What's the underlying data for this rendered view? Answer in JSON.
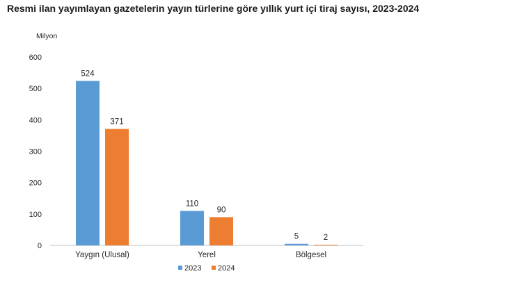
{
  "chart_data": {
    "type": "bar",
    "title": "Resmi ilan yayımlayan gazetelerin yayın türlerine göre yıllık yurt içi tiraj sayısı, 2023-2024",
    "ylabel": "Milyon",
    "xlabel": "",
    "categories": [
      "Yaygın (Ulusal)",
      "Yerel",
      "Bölgesel"
    ],
    "series": [
      {
        "name": "2023",
        "values": [
          524,
          110,
          5
        ],
        "color": "#5b9bd5"
      },
      {
        "name": "2024",
        "values": [
          371,
          90,
          2
        ],
        "color": "#ed7d31"
      }
    ],
    "ylim": [
      0,
      600
    ],
    "yticks": [
      0,
      100,
      200,
      300,
      400,
      500,
      600
    ],
    "grid": false,
    "legend": "bottom-center",
    "data_labels": true
  }
}
